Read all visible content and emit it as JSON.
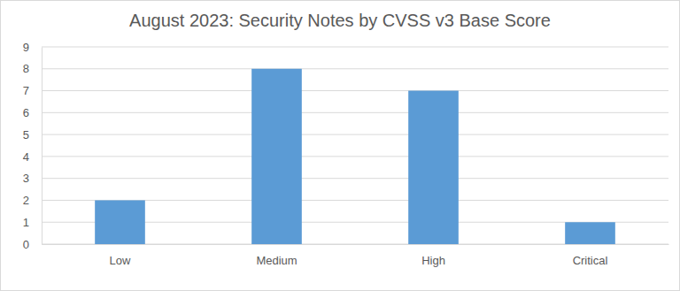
{
  "chart_data": {
    "type": "bar",
    "title": "August 2023: Security Notes by CVSS v3 Base Score",
    "categories": [
      "Low",
      "Medium",
      "High",
      "Critical"
    ],
    "values": [
      2,
      8,
      7,
      1
    ],
    "color": "#5b9bd5",
    "ylim": [
      0,
      9
    ],
    "yticks": [
      0,
      1,
      2,
      3,
      4,
      5,
      6,
      7,
      8,
      9
    ],
    "grid": true
  }
}
